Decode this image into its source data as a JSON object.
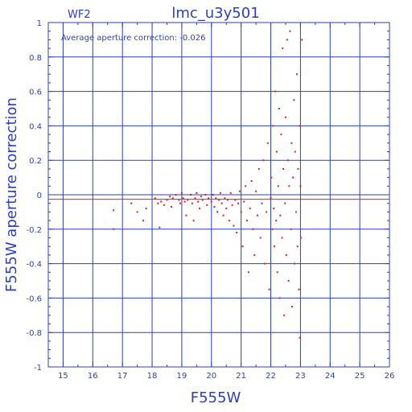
{
  "chart_data": {
    "type": "scatter",
    "title": "lmc_u3y501",
    "panel_label": "WF2",
    "annotation": "Average aperture correction: -0.026",
    "xlabel": "F555W",
    "ylabel": "F555W aperture correction",
    "xlim": [
      14.5,
      26
    ],
    "ylim": [
      -1,
      1
    ],
    "x_ticks": [
      "15",
      "16",
      "17",
      "18",
      "19",
      "20",
      "21",
      "22",
      "23",
      "24",
      "25",
      "26"
    ],
    "y_ticks": [
      "-1",
      "-0.8",
      "-0.6",
      "-0.4",
      "-0.2",
      "0",
      "0.2",
      "0.4",
      "0.6",
      "0.8",
      "1"
    ],
    "grid": true,
    "reference_lines": [
      {
        "y": 0,
        "color": "#2b3fc4"
      },
      {
        "y": -0.026,
        "color": "#e02020"
      }
    ],
    "marker_color": "#e02020",
    "axis_color": "#2b3fc4",
    "series": [
      {
        "points": [
          [
            16.7,
            -0.09
          ],
          [
            16.7,
            -0.2
          ],
          [
            17.3,
            -0.05
          ],
          [
            17.5,
            -0.1
          ],
          [
            17.7,
            -0.15
          ],
          [
            17.8,
            -0.08
          ],
          [
            18.1,
            -0.02
          ],
          [
            18.2,
            -0.05
          ],
          [
            18.25,
            -0.19
          ],
          [
            18.3,
            -0.04
          ],
          [
            18.4,
            -0.06
          ],
          [
            18.5,
            -0.03
          ],
          [
            18.6,
            -0.01
          ],
          [
            18.65,
            -0.07
          ],
          [
            18.7,
            -0.02
          ],
          [
            18.8,
            0.0
          ],
          [
            18.9,
            -0.03
          ],
          [
            18.95,
            -0.05
          ],
          [
            19.0,
            0.01
          ],
          [
            19.05,
            -0.02
          ],
          [
            19.1,
            -0.04
          ],
          [
            19.15,
            -0.12
          ],
          [
            19.2,
            -0.03
          ],
          [
            19.3,
            0.0
          ],
          [
            19.35,
            -0.05
          ],
          [
            19.4,
            -0.15
          ],
          [
            19.45,
            -0.02
          ],
          [
            19.5,
            0.01
          ],
          [
            19.55,
            -0.04
          ],
          [
            19.6,
            -0.08
          ],
          [
            19.65,
            -0.01
          ],
          [
            19.7,
            -0.03
          ],
          [
            19.8,
            0.0
          ],
          [
            19.85,
            -0.06
          ],
          [
            19.9,
            -0.02
          ],
          [
            20.0,
            -0.04
          ],
          [
            20.05,
            0.0
          ],
          [
            20.1,
            -0.07
          ],
          [
            20.15,
            -0.02
          ],
          [
            20.2,
            -0.1
          ],
          [
            20.25,
            -0.03
          ],
          [
            20.3,
            0.01
          ],
          [
            20.35,
            -0.05
          ],
          [
            20.4,
            -0.12
          ],
          [
            20.45,
            -0.02
          ],
          [
            20.5,
            -0.08
          ],
          [
            20.55,
            -0.03
          ],
          [
            20.6,
            -0.15
          ],
          [
            20.65,
            0.01
          ],
          [
            20.7,
            -0.06
          ],
          [
            20.75,
            -0.18
          ],
          [
            20.8,
            -0.03
          ],
          [
            20.85,
            -0.22
          ],
          [
            20.9,
            -0.05
          ],
          [
            20.95,
            0.02
          ],
          [
            21.0,
            -0.1
          ],
          [
            21.05,
            -0.3
          ],
          [
            21.1,
            -0.04
          ],
          [
            21.15,
            0.05
          ],
          [
            21.2,
            -0.15
          ],
          [
            21.25,
            -0.45
          ],
          [
            21.3,
            -0.08
          ],
          [
            21.35,
            0.08
          ],
          [
            21.4,
            -0.2
          ],
          [
            21.45,
            -0.35
          ],
          [
            21.5,
            0.02
          ],
          [
            21.55,
            -0.12
          ],
          [
            21.6,
            0.15
          ],
          [
            21.65,
            -0.25
          ],
          [
            21.7,
            -0.05
          ],
          [
            21.75,
            0.2
          ],
          [
            21.8,
            -0.4
          ],
          [
            21.85,
            -0.1
          ],
          [
            21.9,
            0.3
          ],
          [
            21.95,
            -0.55
          ],
          [
            22.0,
            -0.02
          ],
          [
            22.02,
            0.1
          ],
          [
            22.05,
            -0.2
          ],
          [
            22.08,
            0.4
          ],
          [
            22.1,
            -0.08
          ],
          [
            22.12,
            -0.3
          ],
          [
            22.15,
            0.6
          ],
          [
            22.18,
            -0.15
          ],
          [
            22.2,
            0.25
          ],
          [
            22.22,
            -0.45
          ],
          [
            22.25,
            0.05
          ],
          [
            22.28,
            0.5
          ],
          [
            22.3,
            -0.6
          ],
          [
            22.32,
            -0.12
          ],
          [
            22.35,
            0.35
          ],
          [
            22.38,
            -0.25
          ],
          [
            22.4,
            0.85
          ],
          [
            22.42,
            0.15
          ],
          [
            22.45,
            -0.7
          ],
          [
            22.48,
            -0.05
          ],
          [
            22.5,
            0.45
          ],
          [
            22.52,
            -0.35
          ],
          [
            22.55,
            0.9
          ],
          [
            22.58,
            0.2
          ],
          [
            22.6,
            -0.5
          ],
          [
            22.62,
            0.05
          ],
          [
            22.65,
            0.95
          ],
          [
            22.68,
            -0.2
          ],
          [
            22.7,
            0.3
          ],
          [
            22.72,
            -0.65
          ],
          [
            22.75,
            0.1
          ],
          [
            22.78,
            0.55
          ],
          [
            22.8,
            -0.4
          ],
          [
            22.82,
            0.25
          ],
          [
            22.85,
            -0.1
          ],
          [
            22.88,
            0.7
          ],
          [
            22.9,
            -0.3
          ],
          [
            22.92,
            0.15
          ],
          [
            22.95,
            -0.55
          ],
          [
            22.97,
            0.4
          ],
          [
            22.98,
            -0.83
          ],
          [
            23.0,
            0.05
          ],
          [
            23.02,
            -0.25
          ],
          [
            23.05,
            0.9
          ]
        ]
      }
    ]
  }
}
